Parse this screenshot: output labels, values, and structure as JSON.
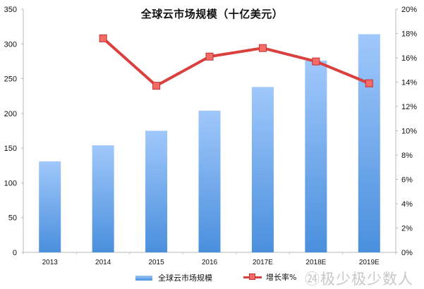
{
  "chart_data": {
    "type": "bar",
    "combo": "bar+line",
    "title": "全球云市场规模（十亿美元）",
    "categories": [
      "2013",
      "2014",
      "2015",
      "2016",
      "2017E",
      "2018E",
      "2019E"
    ],
    "series": [
      {
        "name": "全球云市场规模",
        "type": "bar",
        "axis": "left",
        "color": "#5a9ce8",
        "values": [
          131,
          154,
          175,
          204,
          238,
          276,
          314
        ]
      },
      {
        "name": "增长率%",
        "type": "line",
        "axis": "right",
        "color": "#d9403e",
        "values": [
          null,
          17.6,
          13.7,
          16.1,
          16.8,
          15.7,
          13.9
        ]
      }
    ],
    "left_axis": {
      "min": 0,
      "max": 350,
      "step": 50,
      "ticks": [
        "0",
        "50",
        "100",
        "150",
        "200",
        "250",
        "300",
        "350"
      ]
    },
    "right_axis": {
      "min": 0,
      "max": 20,
      "step": 2,
      "ticks": [
        "0%",
        "2%",
        "4%",
        "6%",
        "8%",
        "10%",
        "12%",
        "14%",
        "16%",
        "18%",
        "20%"
      ]
    },
    "xlabel": "",
    "ylabel": "",
    "grid": false,
    "legend_position": "bottom"
  },
  "title": "全球云市场规模（十亿美元）",
  "legend": {
    "bar_label": "全球云市场规模",
    "line_label": "增长率%"
  },
  "watermark": "㉔极少极少数人"
}
